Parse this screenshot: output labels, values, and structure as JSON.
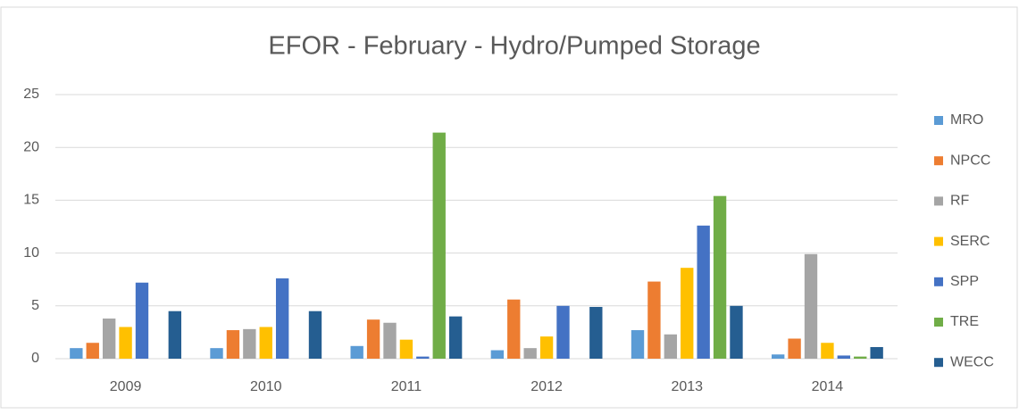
{
  "chart_data": {
    "type": "bar",
    "title": "EFOR - February - Hydro/Pumped  Storage",
    "categories": [
      "2009",
      "2010",
      "2011",
      "2012",
      "2013",
      "2014"
    ],
    "series": [
      {
        "name": "MRO",
        "color": "#5b9bd5",
        "values": [
          1.0,
          1.0,
          1.2,
          0.8,
          2.7,
          0.4
        ]
      },
      {
        "name": "NPCC",
        "color": "#ed7d31",
        "values": [
          1.5,
          2.7,
          3.7,
          5.6,
          7.3,
          1.9
        ]
      },
      {
        "name": "RF",
        "color": "#a5a5a5",
        "values": [
          3.8,
          2.8,
          3.4,
          1.0,
          2.3,
          9.9
        ]
      },
      {
        "name": "SERC",
        "color": "#ffc000",
        "values": [
          3.0,
          3.0,
          1.8,
          2.1,
          8.6,
          1.5
        ]
      },
      {
        "name": "SPP",
        "color": "#4472c4",
        "values": [
          7.2,
          7.6,
          0.2,
          5.0,
          12.6,
          0.3
        ]
      },
      {
        "name": "TRE",
        "color": "#70ad47",
        "values": [
          0,
          0,
          21.4,
          0,
          15.4,
          0.2
        ]
      },
      {
        "name": "WECC",
        "color": "#255e91",
        "values": [
          4.5,
          4.5,
          4.0,
          4.9,
          5.0,
          1.1
        ]
      }
    ],
    "ylim": [
      0,
      25
    ],
    "yticks": [
      0,
      5,
      10,
      15,
      20,
      25
    ],
    "grid": true,
    "legend": "right"
  }
}
